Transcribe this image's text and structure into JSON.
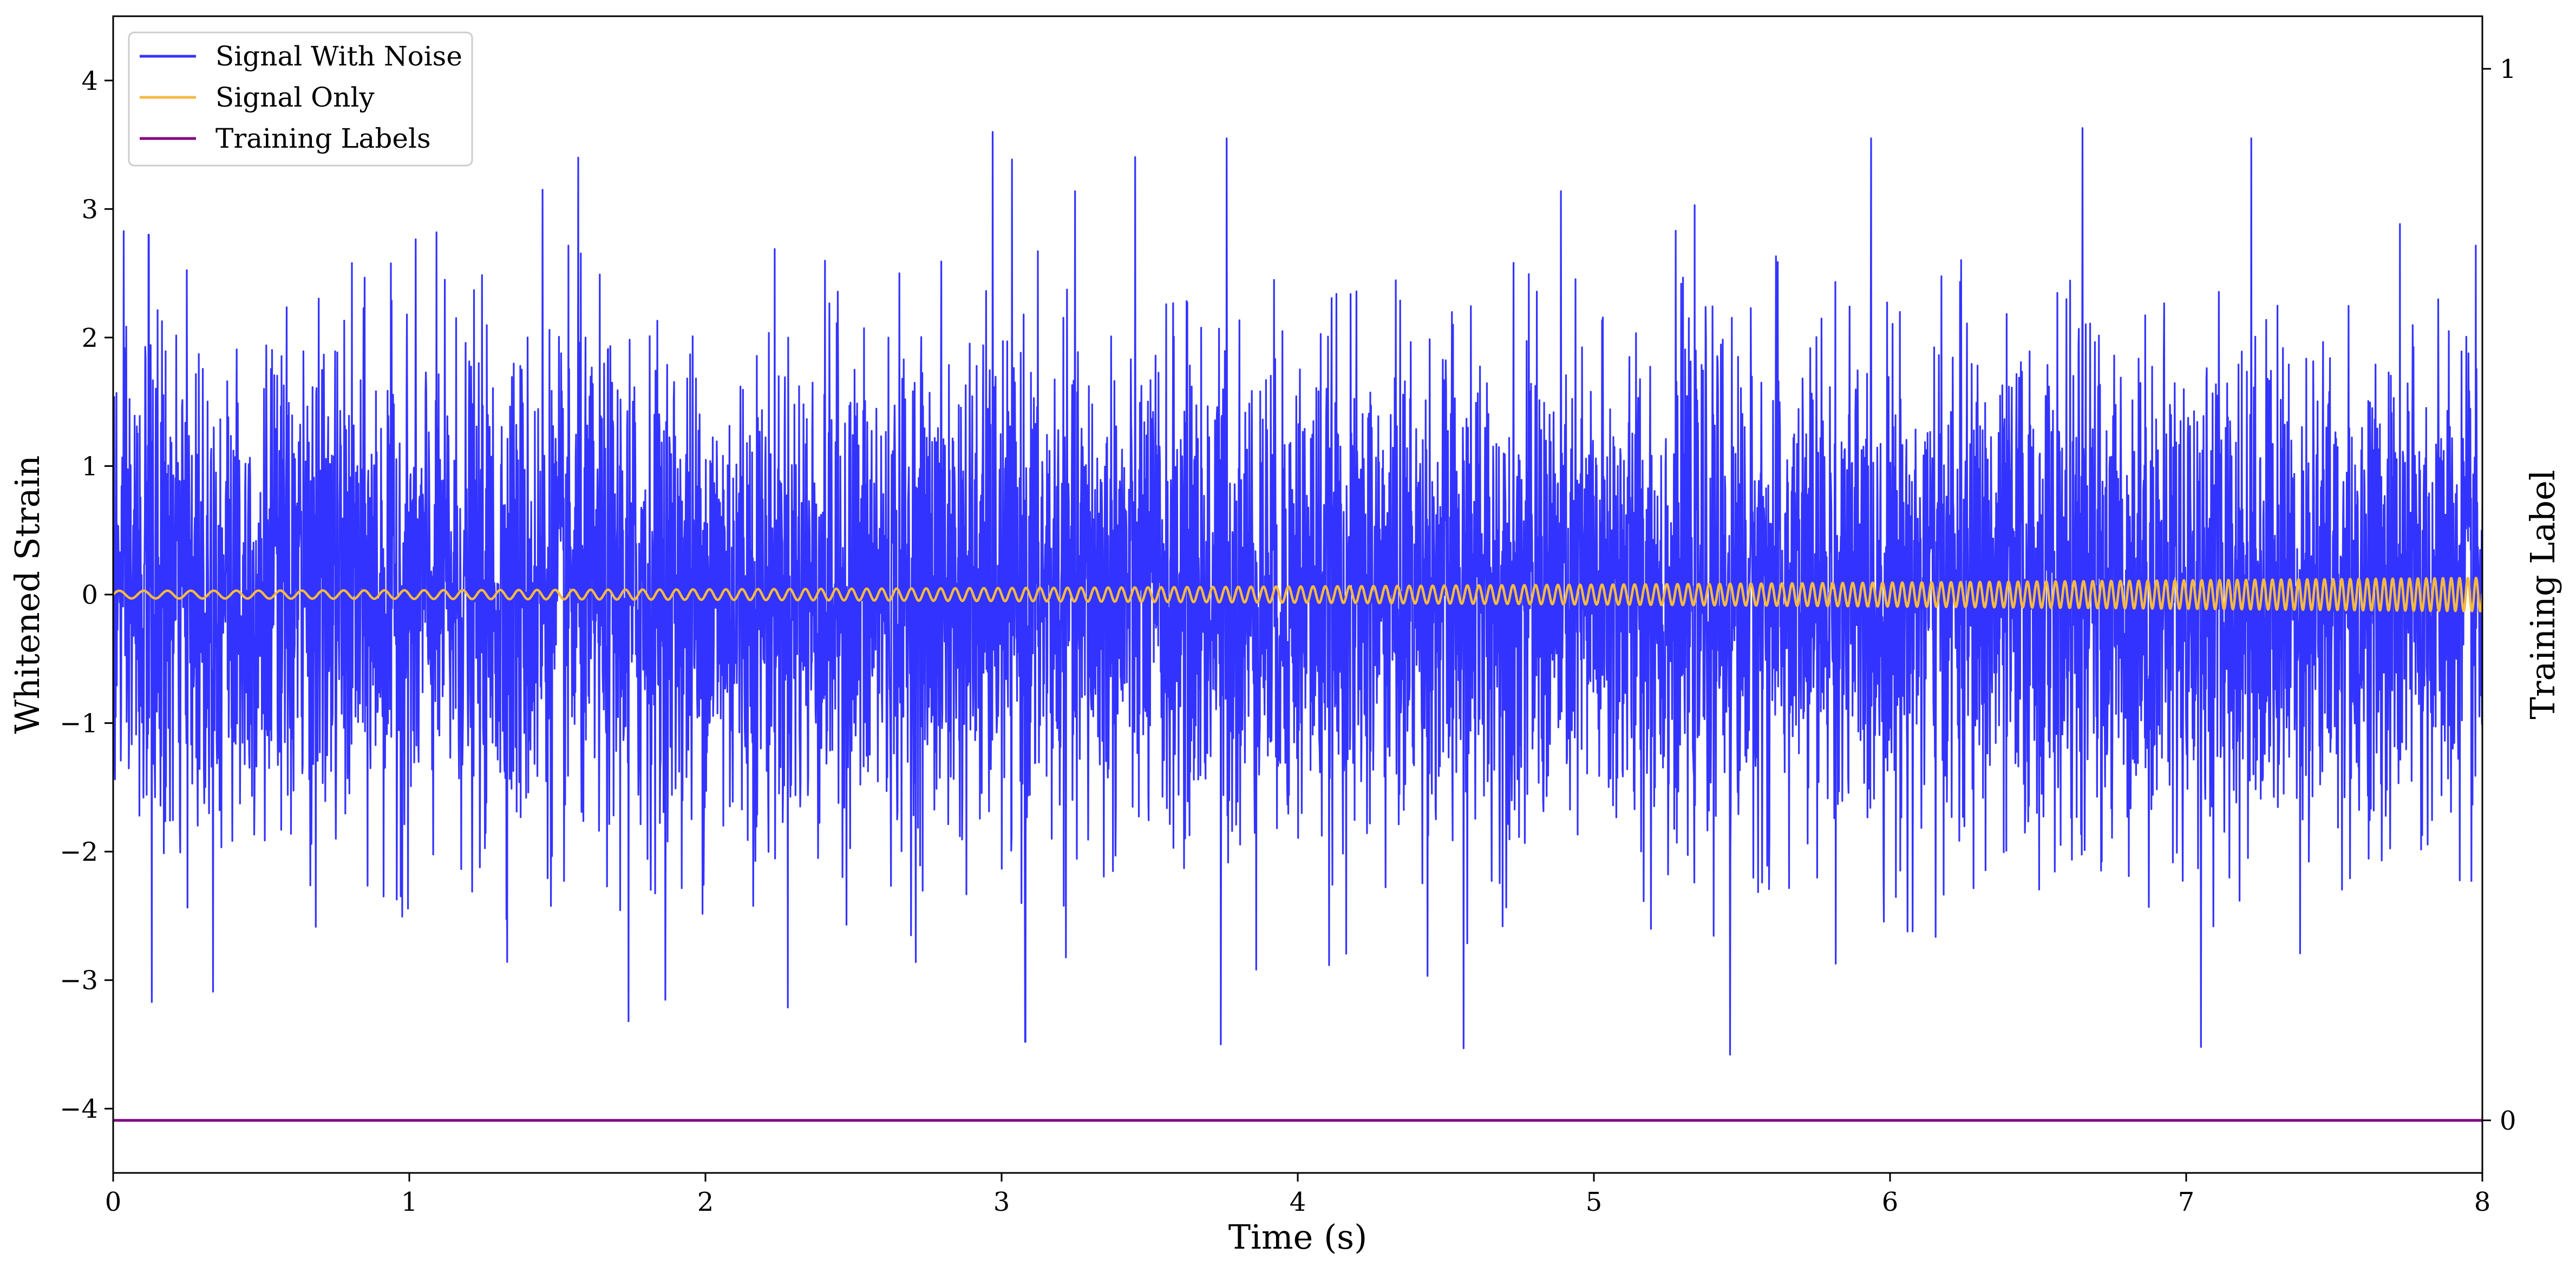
{
  "chart_data": {
    "type": "line",
    "title": "",
    "xlabel": "Time (s)",
    "ylabel": "Whitened Strain",
    "ylabel_right": "Training Label",
    "xlim": [
      0,
      8
    ],
    "ylim": [
      -4.5,
      4.5
    ],
    "ylim_right": [
      -0.05,
      1.05
    ],
    "x_ticks": [
      0,
      1,
      2,
      3,
      4,
      5,
      6,
      7,
      8
    ],
    "x_tick_labels": [
      "0",
      "1",
      "2",
      "3",
      "4",
      "5",
      "6",
      "7",
      "8"
    ],
    "y_ticks": [
      -4,
      -3,
      -2,
      -1,
      0,
      1,
      2,
      3,
      4
    ],
    "y_tick_labels": [
      "−4",
      "−3",
      "−2",
      "−1",
      "0",
      "1",
      "2",
      "3",
      "4"
    ],
    "y_right_ticks": [
      0,
      1
    ],
    "y_right_tick_labels": [
      "0",
      "1"
    ],
    "grid": false,
    "legend_position": "top-left",
    "series": [
      {
        "name": "Signal With Noise",
        "color": "#3333ff",
        "axis": "left",
        "description": "dense noisy whitened strain, roughly N(0,1)",
        "typical_range": [
          -3.6,
          3.65
        ],
        "sample_peaks": [
          {
            "x": 0.13,
            "y": -3.17
          },
          {
            "x": 0.12,
            "y": 2.8
          },
          {
            "x": 1.57,
            "y": 3.4
          },
          {
            "x": 1.45,
            "y": 3.15
          },
          {
            "x": 1.74,
            "y": -3.32
          },
          {
            "x": 2.97,
            "y": 3.6
          },
          {
            "x": 3.08,
            "y": -3.48
          },
          {
            "x": 3.74,
            "y": -3.5
          },
          {
            "x": 3.76,
            "y": 3.55
          },
          {
            "x": 4.56,
            "y": -3.53
          },
          {
            "x": 5.46,
            "y": -3.58
          },
          {
            "x": 6.65,
            "y": 3.63
          },
          {
            "x": 7.05,
            "y": -3.52
          },
          {
            "x": 7.22,
            "y": 3.55
          }
        ]
      },
      {
        "name": "Signal Only",
        "color": "#f5b942",
        "axis": "left",
        "description": "chirp oscillation around 0, amplitude growing with time",
        "amplitude_start": 0.03,
        "amplitude_end": 0.13,
        "cycles_start_per_s": 12,
        "cycles_end_per_s": 36
      },
      {
        "name": "Training Labels",
        "color": "#800080",
        "axis": "right",
        "x": [
          0,
          8
        ],
        "y": [
          0,
          0
        ]
      }
    ]
  }
}
